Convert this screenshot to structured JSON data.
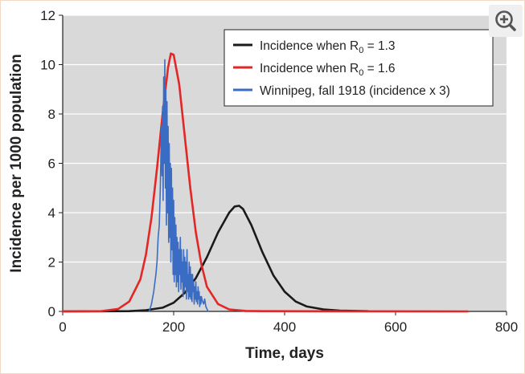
{
  "chart_data": {
    "type": "line",
    "xlabel": "Time, days",
    "ylabel": "Incidence per 1000 population",
    "xlim": [
      0,
      800
    ],
    "ylim": [
      0,
      12
    ],
    "xticks": [
      0,
      200,
      400,
      600,
      800
    ],
    "yticks": [
      0,
      2,
      4,
      6,
      8,
      10,
      12
    ],
    "grid": "horizontal",
    "legend_position": "top-right",
    "series": [
      {
        "name_parts": [
          "Incidence when R",
          "0",
          " = 1.3"
        ],
        "color": "#1a1a1a",
        "x": [
          0,
          120,
          150,
          180,
          200,
          220,
          240,
          260,
          280,
          300,
          310,
          318,
          325,
          340,
          360,
          380,
          400,
          420,
          440,
          470,
          500,
          550
        ],
        "y": [
          0,
          0.01,
          0.05,
          0.15,
          0.35,
          0.75,
          1.35,
          2.2,
          3.2,
          4.0,
          4.25,
          4.28,
          4.15,
          3.5,
          2.4,
          1.45,
          0.8,
          0.4,
          0.2,
          0.08,
          0.03,
          0.01
        ]
      },
      {
        "name_parts": [
          "Incidence when R",
          "0",
          " = 1.6"
        ],
        "color": "#e32626",
        "x": [
          0,
          70,
          100,
          120,
          140,
          150,
          160,
          170,
          180,
          190,
          195,
          200,
          210,
          220,
          230,
          240,
          250,
          260,
          280,
          300,
          330,
          360,
          730
        ],
        "y": [
          0,
          0.01,
          0.1,
          0.4,
          1.3,
          2.3,
          3.8,
          5.8,
          8.0,
          9.9,
          10.45,
          10.4,
          9.2,
          7.1,
          5.0,
          3.2,
          1.9,
          1.0,
          0.3,
          0.08,
          0.02,
          0.01,
          0
        ]
      },
      {
        "name": "Winnipeg, fall 1918 (incidence x 3)",
        "color": "#3b6cc4",
        "x": [
          156,
          160,
          164,
          168,
          170,
          172,
          174,
          176,
          178,
          179,
          180,
          181,
          182,
          183,
          184,
          185,
          186,
          187,
          188,
          189,
          190,
          191,
          192,
          193,
          194,
          195,
          196,
          197,
          198,
          199,
          200,
          201,
          202,
          203,
          204,
          205,
          206,
          207,
          208,
          209,
          210,
          211,
          212,
          213,
          214,
          215,
          216,
          217,
          218,
          219,
          220,
          221,
          222,
          223,
          224,
          225,
          226,
          227,
          228,
          229,
          230,
          231,
          232,
          233,
          234,
          235,
          236,
          237,
          238,
          239,
          240,
          241,
          242,
          243,
          244,
          245,
          246,
          247,
          248,
          249,
          250,
          252,
          254,
          256,
          258,
          260,
          262
        ],
        "y": [
          0,
          0.3,
          0.8,
          1.5,
          2.0,
          3.0,
          3.5,
          5.0,
          7.5,
          5.5,
          8.3,
          4.5,
          9.5,
          6.0,
          10.2,
          5.0,
          9.0,
          3.5,
          8.5,
          4.0,
          7.5,
          2.8,
          6.8,
          3.0,
          6.0,
          2.0,
          5.8,
          2.5,
          5.0,
          1.5,
          4.5,
          1.2,
          3.8,
          1.5,
          3.5,
          1.0,
          3.0,
          1.2,
          2.8,
          0.8,
          2.5,
          1.5,
          3.0,
          0.9,
          2.5,
          1.2,
          2.0,
          0.6,
          2.5,
          0.8,
          2.2,
          1.0,
          2.0,
          0.5,
          2.5,
          0.8,
          1.5,
          0.5,
          2.0,
          0.6,
          1.8,
          0.5,
          1.5,
          0.4,
          1.5,
          0.8,
          1.2,
          0.3,
          1.0,
          0.5,
          1.2,
          0.4,
          0.8,
          0.3,
          1.0,
          0.5,
          0.8,
          0.2,
          0.6,
          0.3,
          0.6,
          0.4,
          0.3,
          0.5,
          0.2,
          0.1,
          0
        ]
      }
    ]
  },
  "zoom_icon": "zoom-in-icon"
}
